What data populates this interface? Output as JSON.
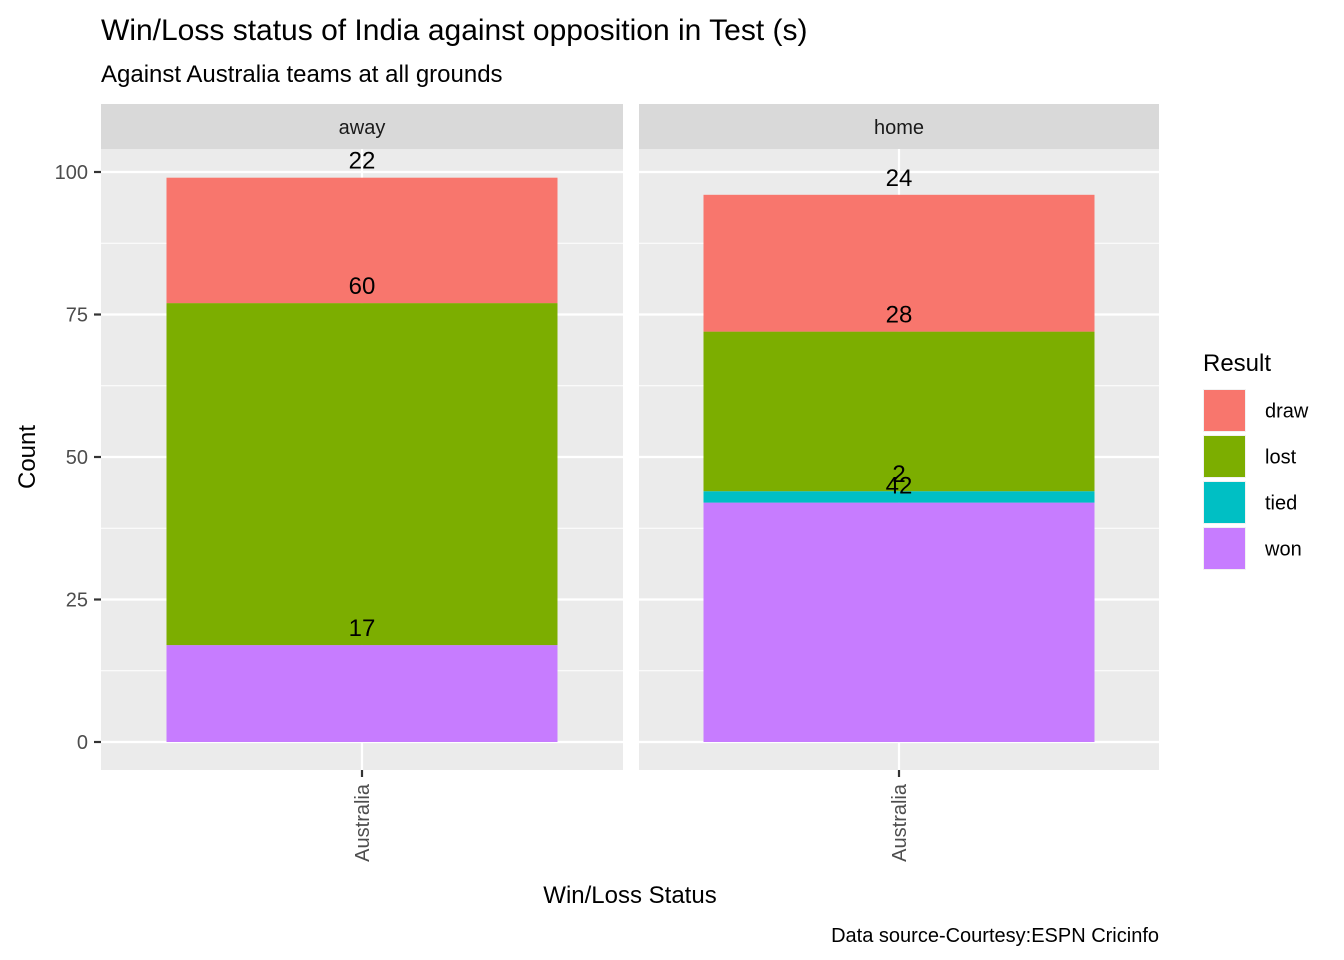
{
  "chart_data": {
    "type": "bar",
    "stacked": true,
    "title": "Win/Loss status of India against opposition in Test (s)",
    "subtitle": "Against Australia  teams at all grounds",
    "xlabel": "Win/Loss Status",
    "ylabel": "Count",
    "caption": "Data source-Courtesy:ESPN Cricinfo",
    "ylim": [
      0,
      110
    ],
    "yticks": [
      0,
      25,
      50,
      75,
      100
    ],
    "ytick_labels": [
      "0",
      "25",
      "50",
      "75",
      "100"
    ],
    "grid": true,
    "legend": {
      "title": "Result",
      "position": "right",
      "entries": [
        {
          "name": "draw",
          "color": "#F8766D"
        },
        {
          "name": "lost",
          "color": "#7CAE00"
        },
        {
          "name": "tied",
          "color": "#00BFC4"
        },
        {
          "name": "won",
          "color": "#C77CFF"
        }
      ]
    },
    "facets": [
      {
        "label": "away",
        "categories": [
          "Australia"
        ],
        "stack_order": [
          "won",
          "lost",
          "draw"
        ],
        "values": {
          "won": 17,
          "lost": 60,
          "draw": 22
        }
      },
      {
        "label": "home",
        "categories": [
          "Australia"
        ],
        "stack_order": [
          "won",
          "tied",
          "lost",
          "draw"
        ],
        "values": {
          "won": 42,
          "tied": 2,
          "lost": 28,
          "draw": 24
        }
      }
    ]
  }
}
